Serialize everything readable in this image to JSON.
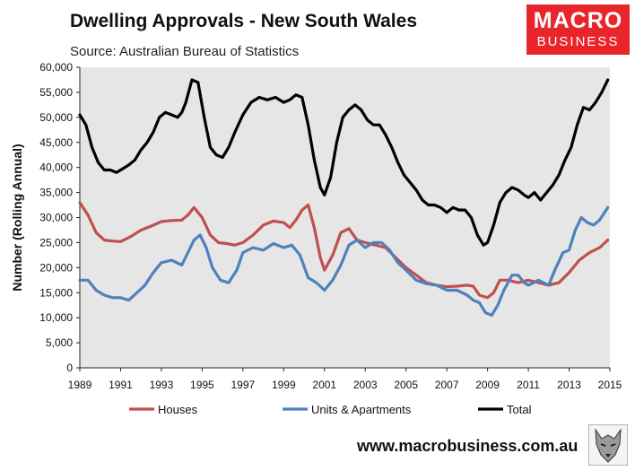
{
  "header": {
    "title": "Dwelling Approvals - New South Wales",
    "subtitle": "Source: Australian Bureau of Statistics"
  },
  "logo": {
    "line1": "MACRO",
    "line2": "BUSINESS",
    "color": "#e8252b"
  },
  "footer": {
    "website": "www.macrobusiness.com.au"
  },
  "colors": {
    "houses": "#c0504d",
    "units": "#4f81bd",
    "total": "#000000",
    "plot_bg": "#e6e6e6"
  },
  "chart_data": {
    "type": "line",
    "title": "Dwelling Approvals - New South Wales",
    "xlabel": "",
    "ylabel": "Number (Rolling Annual)",
    "xlim": [
      1989,
      2015
    ],
    "ylim": [
      0,
      60000
    ],
    "yticks": [
      0,
      5000,
      10000,
      15000,
      20000,
      25000,
      30000,
      35000,
      40000,
      45000,
      50000,
      55000,
      60000
    ],
    "ytick_labels": [
      "0",
      "5,000",
      "10,000",
      "15,000",
      "20,000",
      "25,000",
      "30,000",
      "35,000",
      "40,000",
      "45,000",
      "50,000",
      "55,000",
      "60,000"
    ],
    "xticks": [
      1989,
      1991,
      1993,
      1995,
      1997,
      1999,
      2001,
      2003,
      2005,
      2007,
      2009,
      2011,
      2013,
      2015
    ],
    "xtick_labels": [
      "1989",
      "1991",
      "1993",
      "1995",
      "1997",
      "1999",
      "2001",
      "2003",
      "2005",
      "2007",
      "2009",
      "2011",
      "2013",
      "2015"
    ],
    "legend_position": "bottom",
    "grid": false,
    "series": [
      {
        "name": "Houses",
        "color": "#c0504d",
        "x": [
          1989.0,
          1989.4,
          1989.8,
          1990.2,
          1990.6,
          1991.0,
          1991.5,
          1992.0,
          1992.5,
          1993.0,
          1993.5,
          1994.0,
          1994.3,
          1994.6,
          1995.0,
          1995.4,
          1995.8,
          1996.2,
          1996.6,
          1997.0,
          1997.5,
          1998.0,
          1998.5,
          1999.0,
          1999.3,
          1999.6,
          1999.9,
          2000.2,
          2000.5,
          2000.8,
          2001.0,
          2001.4,
          2001.8,
          2002.2,
          2002.6,
          2003.0,
          2003.5,
          2004.0,
          2004.5,
          2005.0,
          2005.5,
          2006.0,
          2006.5,
          2007.0,
          2007.5,
          2008.0,
          2008.3,
          2008.6,
          2009.0,
          2009.3,
          2009.6,
          2010.0,
          2010.5,
          2011.0,
          2011.5,
          2012.0,
          2012.5,
          2013.0,
          2013.5,
          2014.0,
          2014.5,
          2014.9
        ],
        "y": [
          33000,
          30500,
          27000,
          25500,
          25300,
          25200,
          26200,
          27500,
          28300,
          29200,
          29400,
          29500,
          30500,
          32000,
          30000,
          26500,
          25000,
          24800,
          24500,
          25000,
          26500,
          28500,
          29300,
          29000,
          28000,
          29500,
          31500,
          32500,
          28000,
          22000,
          19500,
          22500,
          27000,
          27800,
          25500,
          25000,
          24500,
          24000,
          22000,
          20000,
          18500,
          17000,
          16500,
          16200,
          16300,
          16500,
          16300,
          14500,
          14000,
          15000,
          17500,
          17500,
          17000,
          17500,
          17000,
          16500,
          17000,
          19000,
          21500,
          23000,
          24000,
          25500
        ]
      },
      {
        "name": "Units & Apartments",
        "color": "#4f81bd",
        "x": [
          1989.0,
          1989.4,
          1989.8,
          1990.2,
          1990.6,
          1991.0,
          1991.4,
          1991.8,
          1992.2,
          1992.6,
          1993.0,
          1993.5,
          1994.0,
          1994.3,
          1994.6,
          1994.9,
          1995.2,
          1995.5,
          1995.9,
          1996.3,
          1996.7,
          1997.0,
          1997.5,
          1998.0,
          1998.5,
          1999.0,
          1999.4,
          1999.8,
          2000.2,
          2000.6,
          2001.0,
          2001.4,
          2001.8,
          2002.2,
          2002.6,
          2003.0,
          2003.4,
          2003.8,
          2004.2,
          2004.6,
          2005.0,
          2005.5,
          2006.0,
          2006.5,
          2007.0,
          2007.5,
          2008.0,
          2008.3,
          2008.6,
          2008.9,
          2009.2,
          2009.5,
          2009.8,
          2010.2,
          2010.5,
          2010.8,
          2011.0,
          2011.5,
          2012.0,
          2012.3,
          2012.7,
          2013.0,
          2013.3,
          2013.6,
          2013.9,
          2014.2,
          2014.5,
          2014.9
        ],
        "y": [
          17500,
          17500,
          15500,
          14500,
          14000,
          14000,
          13500,
          15000,
          16500,
          19000,
          21000,
          21500,
          20500,
          23000,
          25500,
          26500,
          24000,
          20000,
          17500,
          17000,
          19500,
          23000,
          24000,
          23500,
          24800,
          24000,
          24500,
          22500,
          18000,
          17000,
          15500,
          17500,
          20500,
          24500,
          25500,
          24000,
          25000,
          25000,
          23500,
          21000,
          19500,
          17500,
          16800,
          16500,
          15500,
          15500,
          14500,
          13500,
          13000,
          11000,
          10500,
          12500,
          15500,
          18500,
          18500,
          17000,
          16500,
          17500,
          16500,
          19500,
          23000,
          23500,
          27500,
          30000,
          29000,
          28500,
          29500,
          32000
        ]
      },
      {
        "name": "Total",
        "color": "#000000",
        "x": [
          1989.0,
          1989.3,
          1989.6,
          1989.9,
          1990.2,
          1990.5,
          1990.8,
          1991.0,
          1991.4,
          1991.7,
          1992.0,
          1992.3,
          1992.6,
          1992.9,
          1993.2,
          1993.5,
          1993.8,
          1994.0,
          1994.2,
          1994.5,
          1994.8,
          1995.1,
          1995.4,
          1995.7,
          1996.0,
          1996.3,
          1996.6,
          1997.0,
          1997.4,
          1997.8,
          1998.2,
          1998.6,
          1999.0,
          1999.3,
          1999.6,
          1999.9,
          2000.2,
          2000.5,
          2000.8,
          2001.0,
          2001.3,
          2001.6,
          2001.9,
          2002.2,
          2002.5,
          2002.8,
          2003.1,
          2003.4,
          2003.7,
          2004.0,
          2004.3,
          2004.6,
          2004.9,
          2005.2,
          2005.5,
          2005.8,
          2006.1,
          2006.4,
          2006.7,
          2007.0,
          2007.3,
          2007.6,
          2007.9,
          2008.2,
          2008.5,
          2008.8,
          2009.0,
          2009.3,
          2009.6,
          2009.9,
          2010.2,
          2010.5,
          2010.8,
          2011.0,
          2011.3,
          2011.6,
          2011.9,
          2012.2,
          2012.5,
          2012.8,
          2013.1,
          2013.4,
          2013.7,
          2014.0,
          2014.3,
          2014.6,
          2014.9
        ],
        "y": [
          50500,
          48500,
          44000,
          41000,
          39500,
          39500,
          39000,
          39500,
          40500,
          41500,
          43500,
          45000,
          47000,
          50000,
          51000,
          50500,
          50000,
          51000,
          53000,
          57500,
          57000,
          50000,
          44000,
          42500,
          42000,
          44000,
          47000,
          50500,
          53000,
          54000,
          53500,
          54000,
          53000,
          53500,
          54500,
          54000,
          48500,
          41500,
          36000,
          34500,
          38000,
          45000,
          50000,
          51500,
          52500,
          51500,
          49500,
          48500,
          48500,
          46500,
          44000,
          41000,
          38500,
          37000,
          35500,
          33500,
          32500,
          32500,
          32000,
          31000,
          32000,
          31500,
          31500,
          30000,
          26500,
          24500,
          25000,
          28500,
          33000,
          35000,
          36000,
          35500,
          34500,
          34000,
          35000,
          33500,
          35000,
          36500,
          38500,
          41500,
          44000,
          48500,
          52000,
          51500,
          53000,
          55000,
          57500
        ]
      }
    ]
  }
}
